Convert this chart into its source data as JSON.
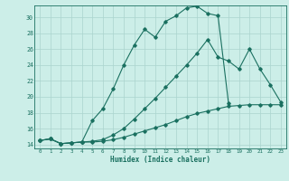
{
  "xlabel": "Humidex (Indice chaleur)",
  "background_color": "#cceee8",
  "grid_color": "#aad4ce",
  "line_color": "#1a7060",
  "xlim": [
    -0.5,
    23.5
  ],
  "ylim": [
    13.5,
    31.5
  ],
  "yticks": [
    14,
    16,
    18,
    20,
    22,
    24,
    26,
    28,
    30
  ],
  "xticks": [
    0,
    1,
    2,
    3,
    4,
    5,
    6,
    7,
    8,
    9,
    10,
    11,
    12,
    13,
    14,
    15,
    16,
    17,
    18,
    19,
    20,
    21,
    22,
    23
  ],
  "s1_x": [
    0,
    1,
    2,
    3,
    4,
    5,
    6,
    7,
    8,
    9,
    10,
    11,
    12,
    13,
    14,
    15,
    16,
    17,
    18
  ],
  "s1_y": [
    14.5,
    14.7,
    14.1,
    14.2,
    14.3,
    17.0,
    18.5,
    21.0,
    24.0,
    26.5,
    28.5,
    27.5,
    29.5,
    30.2,
    31.2,
    31.4,
    30.5,
    30.2,
    19.2
  ],
  "s2_x": [
    0,
    1,
    2,
    3,
    4,
    5,
    6,
    7,
    8,
    9,
    10,
    11,
    12,
    13,
    14,
    15,
    16,
    17,
    18,
    19,
    20,
    21,
    22,
    23
  ],
  "s2_y": [
    14.5,
    14.7,
    14.1,
    14.2,
    14.3,
    14.4,
    14.6,
    15.2,
    16.0,
    17.2,
    18.5,
    19.8,
    21.2,
    22.6,
    24.0,
    25.5,
    27.2,
    25.0,
    24.5,
    23.5,
    26.0,
    23.5,
    21.5,
    19.3
  ],
  "s3_x": [
    0,
    1,
    2,
    3,
    4,
    5,
    6,
    7,
    8,
    9,
    10,
    11,
    12,
    13,
    14,
    15,
    16,
    17,
    18,
    19,
    20,
    21,
    22,
    23
  ],
  "s3_y": [
    14.5,
    14.7,
    14.1,
    14.2,
    14.3,
    14.3,
    14.4,
    14.6,
    14.9,
    15.3,
    15.7,
    16.1,
    16.5,
    17.0,
    17.5,
    17.9,
    18.2,
    18.5,
    18.8,
    18.9,
    19.0,
    19.0,
    19.0,
    19.0
  ]
}
